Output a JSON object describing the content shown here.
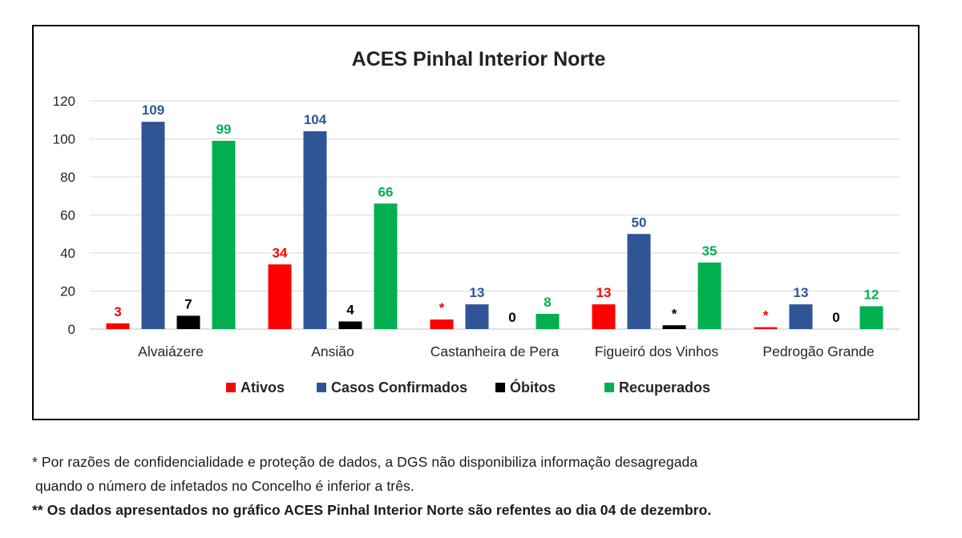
{
  "chart_data": {
    "type": "bar",
    "title": "ACES Pinhal Interior Norte",
    "categories": [
      "Alvaiázere",
      "Ansião",
      "Castanheira de Pera",
      "Figueiró dos Vinhos",
      "Pedrogão Grande"
    ],
    "series": [
      {
        "name": "Ativos",
        "color": "#ff0000",
        "values": [
          3,
          34,
          5,
          13,
          1
        ],
        "labels": [
          "3",
          "34",
          "*",
          "13",
          "*"
        ]
      },
      {
        "name": "Casos Confirmados",
        "color": "#2f5597",
        "values": [
          109,
          104,
          13,
          50,
          13
        ],
        "labels": [
          "109",
          "104",
          "13",
          "50",
          "13"
        ]
      },
      {
        "name": "Óbitos",
        "color": "#000000",
        "values": [
          7,
          4,
          0,
          2,
          0
        ],
        "labels": [
          "7",
          "4",
          "0",
          "*",
          "0"
        ]
      },
      {
        "name": "Recuperados",
        "color": "#00b050",
        "values": [
          99,
          66,
          8,
          35,
          12
        ],
        "labels": [
          "99",
          "66",
          "8",
          "35",
          "12"
        ]
      }
    ],
    "yticks": [
      0,
      20,
      40,
      60,
      80,
      100,
      120
    ],
    "ylim": [
      0,
      120
    ],
    "grid": true,
    "legend_position": "bottom"
  },
  "footnotes": {
    "line1": "* Por razões de confidencialidade e proteção de dados, a DGS não disponibiliza informação desagregada",
    "line2": "quando o número de infetados no Concelho é inferior a três.",
    "line3": "** Os dados apresentados no gráfico ACES Pinhal Interior Norte são refentes ao dia 04 de dezembro."
  }
}
